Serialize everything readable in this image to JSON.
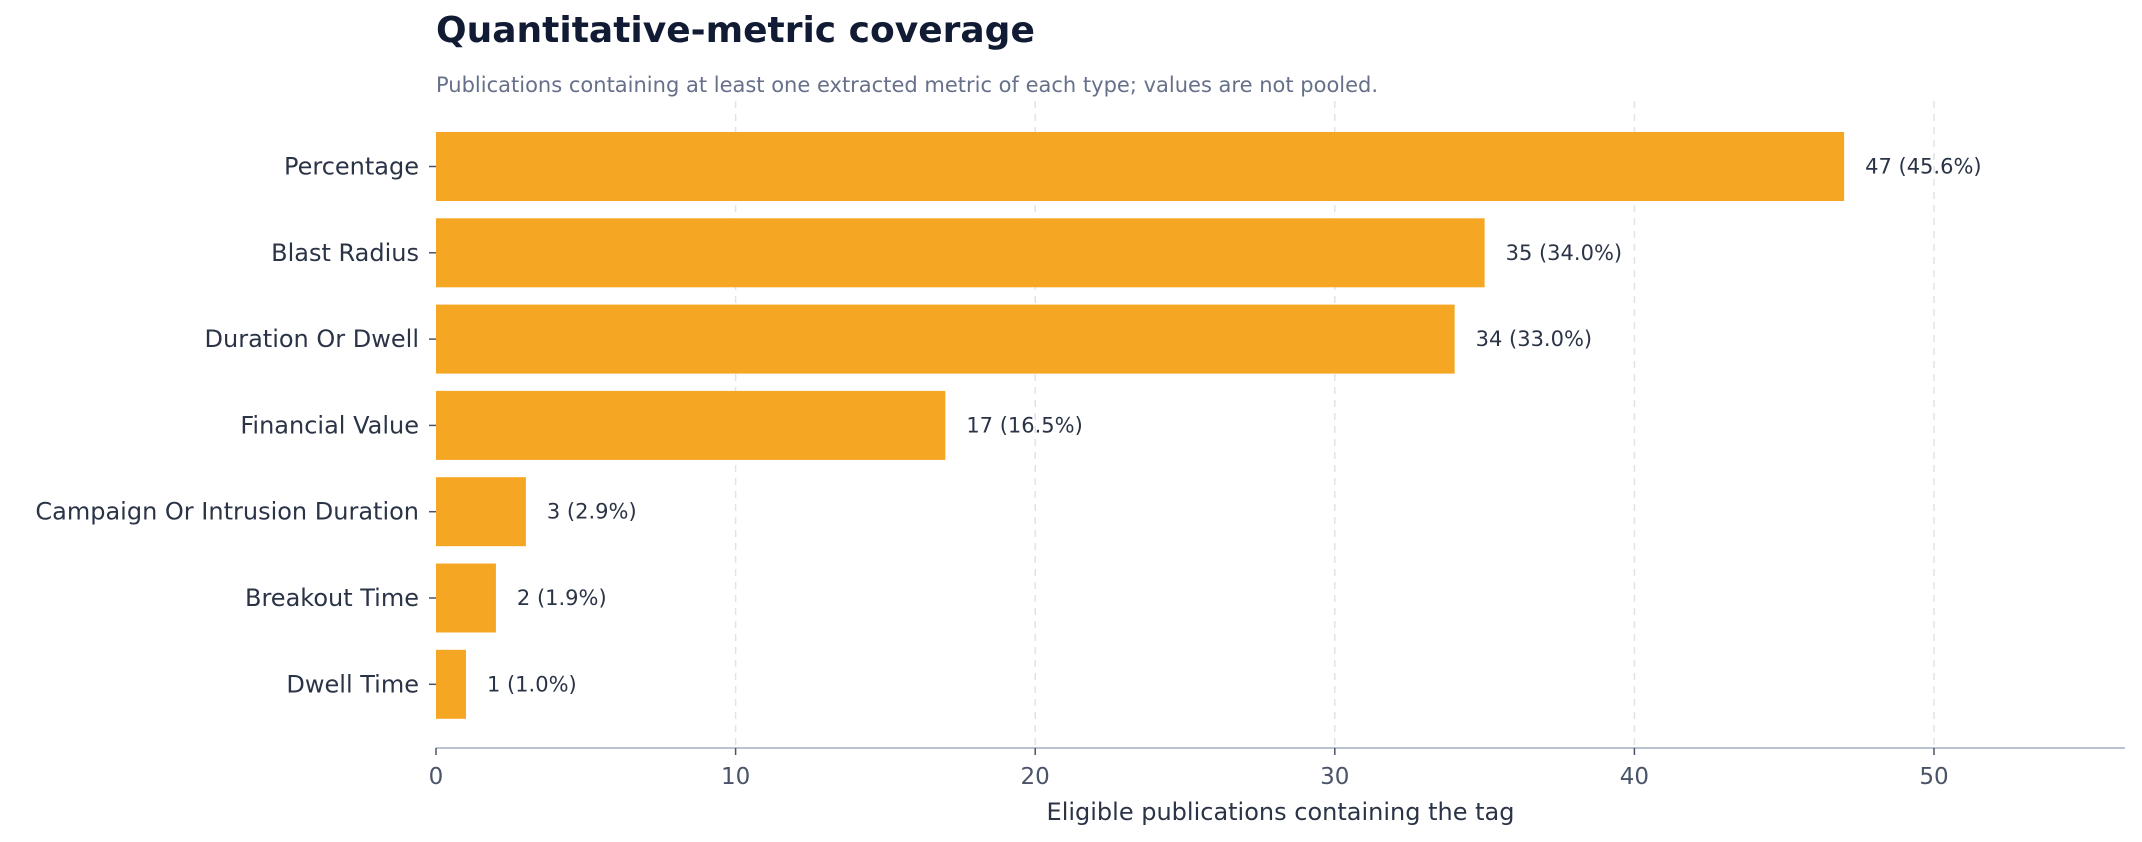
{
  "chart_data": {
    "type": "bar",
    "orientation": "horizontal",
    "title": "Quantitative-metric coverage",
    "subtitle": "Publications containing at least one extracted metric of each type; values are not pooled.",
    "xlabel": "Eligible publications containing the tag",
    "ylabel": "",
    "xlim": [
      0,
      56.4
    ],
    "xticks": [
      0,
      10,
      20,
      30,
      40,
      50
    ],
    "grid": "vertical dashed",
    "categories": [
      "Percentage",
      "Blast Radius",
      "Duration Or Dwell",
      "Financial Value",
      "Campaign Or Intrusion Duration",
      "Breakout Time",
      "Dwell Time"
    ],
    "values": [
      47,
      35,
      34,
      17,
      3,
      2,
      1
    ],
    "data_labels": [
      "47  (45.6%)",
      "35  (34.0%)",
      "34  (33.0%)",
      "17  (16.5%)",
      "3  (2.9%)",
      "2  (1.9%)",
      "1  (1.0%)"
    ],
    "colors": {
      "bar": "#f5a623",
      "grid": "#dfe3ea",
      "axis": "#b9c4d0",
      "text": "#2b3447"
    }
  }
}
